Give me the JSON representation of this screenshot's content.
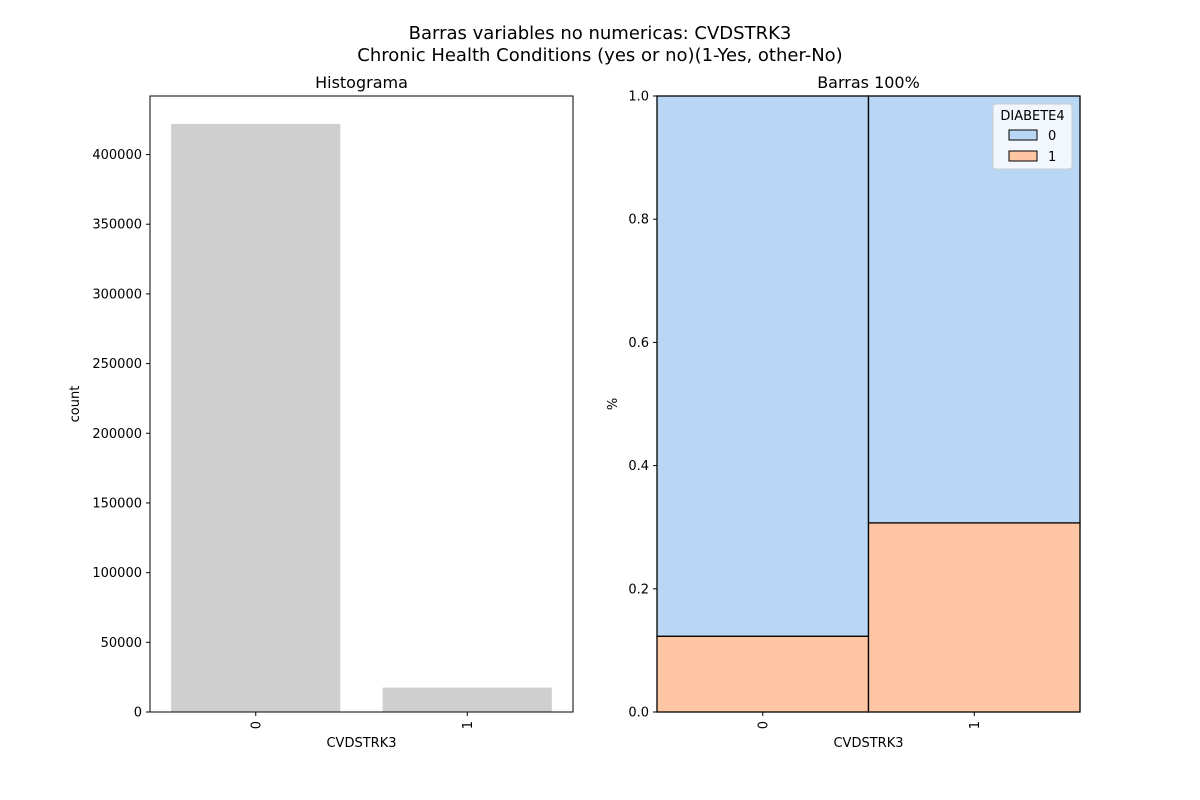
{
  "figure": {
    "title_line1": "Barras variables no numericas: CVDSTRK3",
    "title_line2": "Chronic Health Conditions (yes or no)(1-Yes, other-No)"
  },
  "colors": {
    "histogram_bar": "#cfcfcf",
    "diabete_0": "#b9d7f4",
    "diabete_1": "#ffc6a3",
    "edge": "#000000"
  },
  "chart_data": [
    {
      "type": "bar",
      "title": "Histograma",
      "xlabel": "CVDSTRK3",
      "ylabel": "count",
      "categories": [
        "0",
        "1"
      ],
      "values": [
        422000,
        17500
      ],
      "ylim": [
        0,
        442000
      ],
      "yticks": [
        0,
        50000,
        100000,
        150000,
        200000,
        250000,
        300000,
        350000,
        400000
      ],
      "grid": false
    },
    {
      "type": "bar",
      "stacked": "100%",
      "title": "Barras 100%",
      "xlabel": "CVDSTRK3",
      "ylabel": "%",
      "categories": [
        "0",
        "1"
      ],
      "ylim": [
        0.0,
        1.0
      ],
      "yticks": [
        "0.0",
        "0.2",
        "0.4",
        "0.6",
        "0.8",
        "1.0"
      ],
      "series": [
        {
          "name": "1",
          "values": [
            0.123,
            0.307
          ]
        },
        {
          "name": "0",
          "values": [
            0.877,
            0.693
          ]
        }
      ],
      "legend": {
        "title": "DIABETE4",
        "entries": [
          "0",
          "1"
        ],
        "placement": "top-right"
      },
      "grid": false
    }
  ]
}
